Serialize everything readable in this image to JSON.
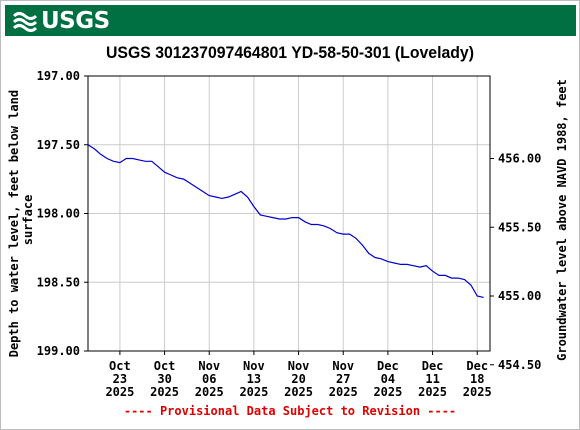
{
  "header": {
    "logo_text": "USGS",
    "logo_icon": "usgs-wave-icon",
    "brand_color": "#006f41"
  },
  "chart_data": {
    "type": "line",
    "title": "USGS 301237097464801 YD-58-50-301 (Lovelady)",
    "ylabel_left": [
      "Depth to water level, feet below land",
      "surface"
    ],
    "ylabel_right": "Groundwater level above NAVD 1988, feet",
    "y_left_range": [
      199.0,
      197.0
    ],
    "y_left_ticks": [
      "197.00",
      "197.50",
      "198.00",
      "198.50",
      "199.00"
    ],
    "y_right_ticks": [
      "456.00",
      "455.50",
      "455.00",
      "454.50"
    ],
    "y_right_tick_values": [
      456.0,
      455.5,
      455.0,
      454.5
    ],
    "right_axis_offset": 653.6,
    "x_range": [
      "2025-10-18",
      "2025-12-20"
    ],
    "x_ticks": [
      {
        "date": "2025-10-23",
        "label": [
          "Oct",
          "23",
          "2025"
        ]
      },
      {
        "date": "2025-10-30",
        "label": [
          "Oct",
          "30",
          "2025"
        ]
      },
      {
        "date": "2025-11-06",
        "label": [
          "Nov",
          "06",
          "2025"
        ]
      },
      {
        "date": "2025-11-13",
        "label": [
          "Nov",
          "13",
          "2025"
        ]
      },
      {
        "date": "2025-11-20",
        "label": [
          "Nov",
          "20",
          "2025"
        ]
      },
      {
        "date": "2025-11-27",
        "label": [
          "Nov",
          "27",
          "2025"
        ]
      },
      {
        "date": "2025-12-04",
        "label": [
          "Dec",
          "04",
          "2025"
        ]
      },
      {
        "date": "2025-12-11",
        "label": [
          "Dec",
          "11",
          "2025"
        ]
      },
      {
        "date": "2025-12-18",
        "label": [
          "Dec",
          "18",
          "2025"
        ]
      }
    ],
    "grid": true,
    "line_color": "#0000cc",
    "series": [
      {
        "name": "",
        "x": [
          "2025-10-18",
          "2025-10-19",
          "2025-10-20",
          "2025-10-21",
          "2025-10-22",
          "2025-10-23",
          "2025-10-24",
          "2025-10-25",
          "2025-10-26",
          "2025-10-27",
          "2025-10-28",
          "2025-10-29",
          "2025-10-30",
          "2025-10-31",
          "2025-11-01",
          "2025-11-02",
          "2025-11-03",
          "2025-11-04",
          "2025-11-05",
          "2025-11-06",
          "2025-11-07",
          "2025-11-08",
          "2025-11-09",
          "2025-11-10",
          "2025-11-11",
          "2025-11-12",
          "2025-11-13",
          "2025-11-14",
          "2025-11-15",
          "2025-11-16",
          "2025-11-17",
          "2025-11-18",
          "2025-11-19",
          "2025-11-20",
          "2025-11-21",
          "2025-11-22",
          "2025-11-23",
          "2025-11-24",
          "2025-11-25",
          "2025-11-26",
          "2025-11-27",
          "2025-11-28",
          "2025-11-29",
          "2025-11-30",
          "2025-12-01",
          "2025-12-02",
          "2025-12-03",
          "2025-12-04",
          "2025-12-05",
          "2025-12-06",
          "2025-12-07",
          "2025-12-08",
          "2025-12-09",
          "2025-12-10",
          "2025-12-11",
          "2025-12-12",
          "2025-12-13",
          "2025-12-14",
          "2025-12-15",
          "2025-12-16",
          "2025-12-17",
          "2025-12-18",
          "2025-12-19"
        ],
        "y": [
          197.5,
          197.53,
          197.57,
          197.6,
          197.62,
          197.63,
          197.6,
          197.6,
          197.61,
          197.62,
          197.62,
          197.66,
          197.7,
          197.72,
          197.74,
          197.75,
          197.78,
          197.81,
          197.84,
          197.87,
          197.88,
          197.89,
          197.88,
          197.86,
          197.84,
          197.88,
          197.95,
          198.01,
          198.02,
          198.03,
          198.04,
          198.04,
          198.03,
          198.03,
          198.06,
          198.08,
          198.08,
          198.09,
          198.11,
          198.14,
          198.15,
          198.15,
          198.18,
          198.23,
          198.29,
          198.32,
          198.33,
          198.35,
          198.36,
          198.37,
          198.37,
          198.38,
          198.39,
          198.38,
          198.42,
          198.45,
          198.45,
          198.47,
          198.47,
          198.48,
          198.52,
          198.6,
          198.61
        ]
      }
    ],
    "footer": "---- Provisional Data Subject to Revision ----"
  }
}
